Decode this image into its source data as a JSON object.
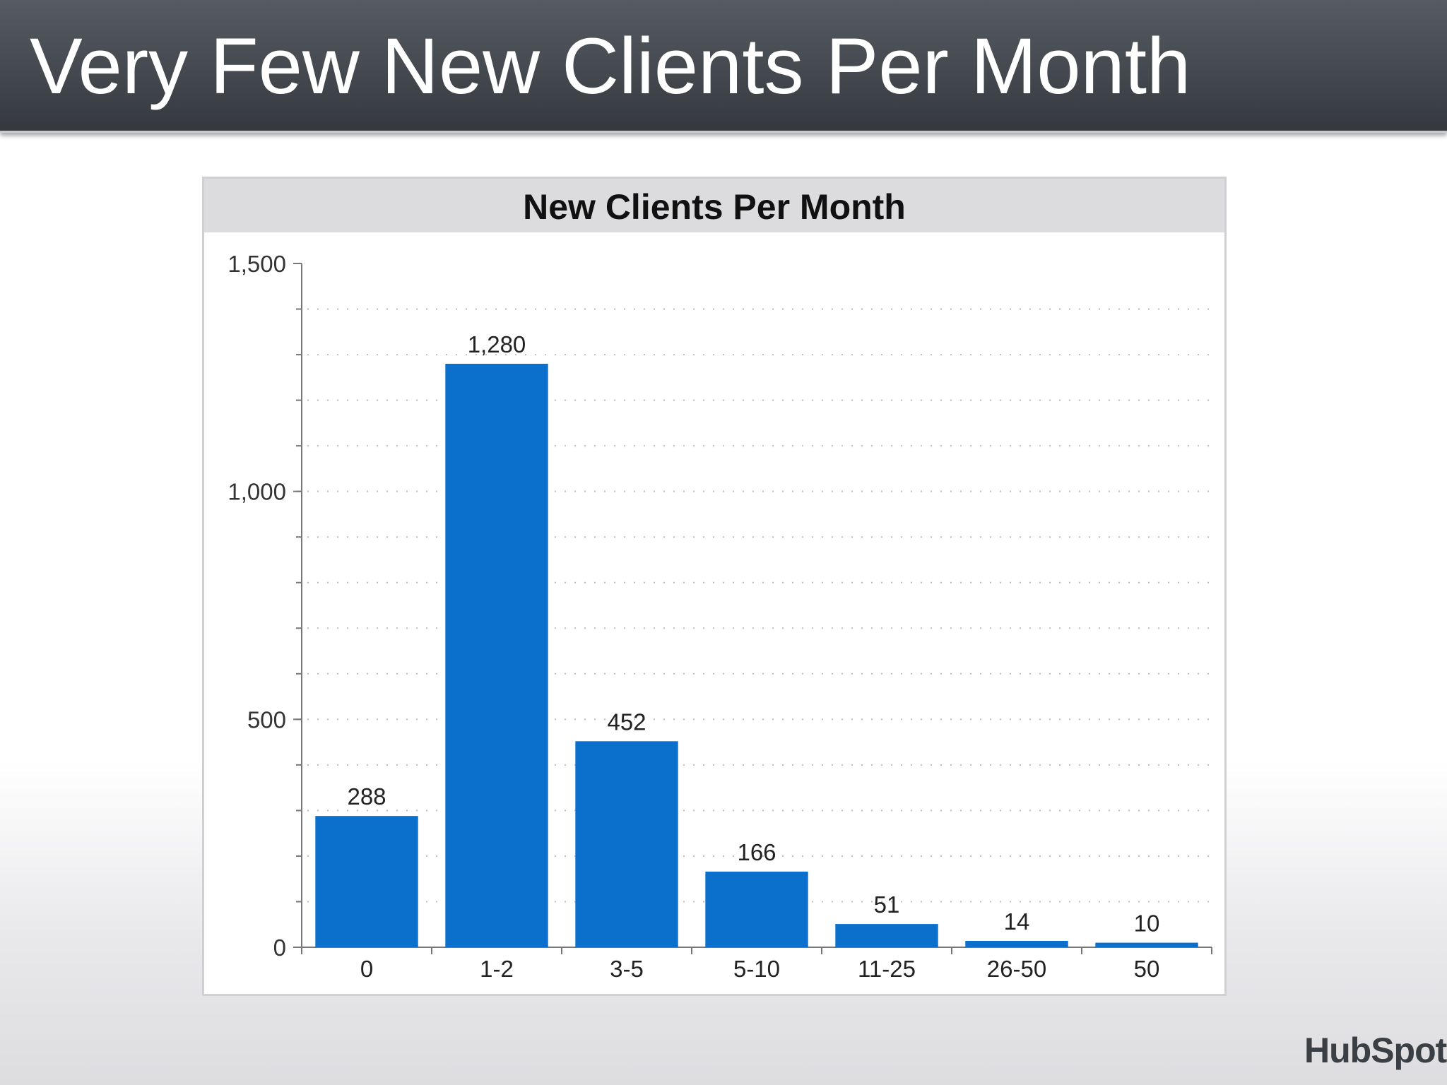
{
  "slide": {
    "title": "Very Few New Clients Per Month"
  },
  "logo": {
    "text": "HubSpot"
  },
  "colors": {
    "bar": "#0b70cc",
    "title_bar": "#464b51",
    "logo_accent": "#f06a2d"
  },
  "chart_data": {
    "type": "bar",
    "title": "New Clients Per Month",
    "xlabel": "",
    "ylabel": "",
    "categories": [
      "0",
      "1-2",
      "3-5",
      "5-10",
      "11-25",
      "26-50",
      "50"
    ],
    "values": [
      288,
      1280,
      452,
      166,
      51,
      14,
      10
    ],
    "data_labels": [
      "288",
      "1,280",
      "452",
      "166",
      "51",
      "14",
      "10"
    ],
    "ylim": [
      0,
      1500
    ],
    "y_ticks": [
      0,
      500,
      1000,
      1500
    ],
    "y_tick_labels": [
      "0",
      "500",
      "1,000",
      "1,500"
    ],
    "grid": true,
    "legend": "none"
  }
}
